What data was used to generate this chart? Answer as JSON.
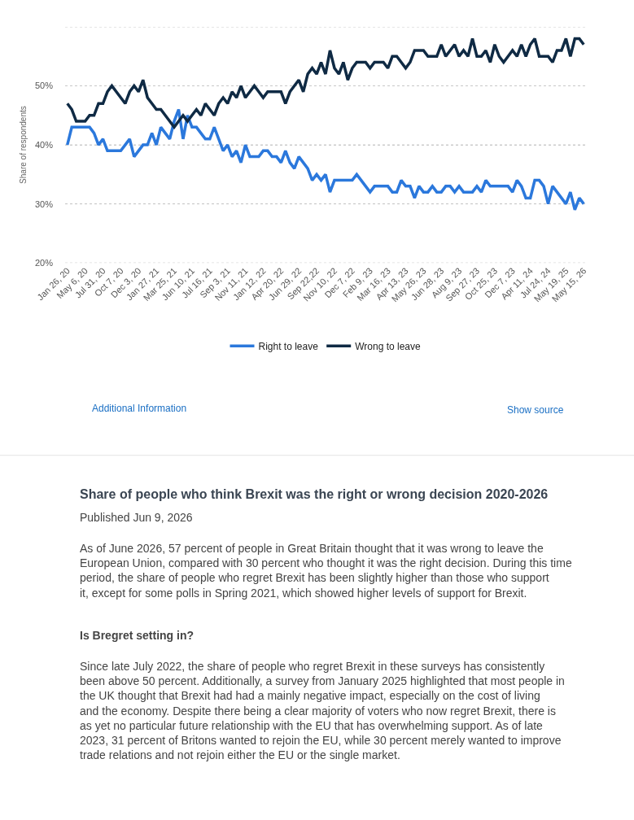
{
  "chart_data": {
    "type": "line",
    "title": "Share of people who think Brexit was the right or wrong decision 2020-2026",
    "ylabel": "Share of respondents",
    "categories": [
      "Jan 26, 20",
      null,
      null,
      null,
      "May 6, 20",
      null,
      null,
      null,
      "Jul 31, 20",
      null,
      null,
      null,
      "Oct 7, 20",
      null,
      null,
      null,
      "Dec 3, 20",
      null,
      null,
      null,
      "Jan 27, 21",
      null,
      null,
      null,
      "Mar 25, 21",
      null,
      null,
      null,
      "Jun 10, 21",
      null,
      null,
      null,
      "Jul 16, 21",
      null,
      null,
      null,
      "Sep 3, 21",
      null,
      null,
      null,
      "Nov 11, 21",
      null,
      null,
      null,
      "Jan 12, 22",
      null,
      null,
      null,
      "Apr 20, 22",
      null,
      null,
      null,
      "Jun 29, 22",
      null,
      null,
      null,
      "Sep 22,22",
      null,
      null,
      null,
      "Nov 10, 22",
      null,
      null,
      null,
      "Dec 7, 22",
      null,
      null,
      null,
      "Feb 9, 23",
      null,
      null,
      null,
      "Mar 16, 23",
      null,
      null,
      null,
      "Apr 13, 23",
      null,
      null,
      null,
      "May 26, 23",
      null,
      null,
      null,
      "Jun 28, 23",
      null,
      null,
      null,
      "Aug 9, 23",
      null,
      null,
      null,
      "Sep 27, 23",
      null,
      null,
      null,
      "Oct 25, 23",
      null,
      null,
      null,
      "Dec 7, 23",
      null,
      null,
      null,
      "Apr 11, 24",
      null,
      null,
      null,
      "Jul 24, 24",
      null,
      null,
      null,
      "May 19, 25",
      null,
      null,
      null,
      "May 15, 26"
    ],
    "series": [
      {
        "name": "Right to leave",
        "color": "#2b78dc",
        "values": [
          40,
          43,
          43,
          43,
          43,
          43,
          42,
          40,
          41,
          39,
          39,
          39,
          39,
          40,
          41,
          38,
          39,
          40,
          40,
          42,
          40,
          43,
          42,
          41,
          44,
          46,
          41,
          45,
          43,
          43,
          42,
          41,
          41,
          43,
          41,
          39,
          40,
          38,
          39,
          37,
          40,
          38,
          38,
          38,
          39,
          39,
          38,
          38,
          37,
          39,
          37,
          36,
          38,
          37,
          36,
          34,
          35,
          34,
          35,
          32,
          34,
          34,
          34,
          34,
          34,
          35,
          34,
          33,
          32,
          33,
          33,
          33,
          33,
          32,
          32,
          34,
          33,
          33,
          31,
          33,
          32,
          32,
          33,
          32,
          32,
          33,
          33,
          32,
          33,
          32,
          32,
          32,
          33,
          32,
          34,
          33,
          33,
          33,
          33,
          33,
          32,
          34,
          33,
          31,
          31,
          34,
          34,
          33,
          30,
          33,
          32,
          31,
          30,
          32,
          29,
          31,
          30
        ]
      },
      {
        "name": "Wrong to leave",
        "color": "#0f2a44",
        "values": [
          47,
          46,
          44,
          44,
          44,
          45,
          45,
          47,
          47,
          49,
          50,
          49,
          48,
          47,
          49,
          50,
          49,
          51,
          48,
          47,
          46,
          46,
          45,
          44,
          43,
          44,
          45,
          44,
          45,
          46,
          45,
          47,
          46,
          45,
          47,
          48,
          47,
          49,
          48,
          50,
          48,
          49,
          50,
          49,
          48,
          49,
          49,
          49,
          49,
          47,
          49,
          50,
          51,
          49,
          52,
          53,
          52,
          54,
          52,
          56,
          53,
          52,
          54,
          51,
          53,
          54,
          54,
          54,
          53,
          54,
          54,
          54,
          53,
          55,
          55,
          54,
          53,
          54,
          56,
          56,
          56,
          55,
          55,
          55,
          57,
          55,
          56,
          57,
          55,
          56,
          55,
          58,
          55,
          55,
          56,
          54,
          57,
          55,
          54,
          55,
          56,
          55,
          57,
          55,
          57,
          58,
          55,
          55,
          55,
          54,
          56,
          56,
          58,
          55,
          58,
          58,
          57
        ]
      }
    ],
    "ylim": [
      20,
      60
    ],
    "yticks": [
      {
        "value": 20,
        "label": "20%"
      },
      {
        "value": 30,
        "label": "30%"
      },
      {
        "value": 40,
        "label": "40%"
      },
      {
        "value": 50,
        "label": "50%"
      },
      {
        "value": 60,
        "label": null
      }
    ],
    "grid": "y",
    "legend": "bottom",
    "marker": "none",
    "line_style": "solid",
    "annotations": [
      "Additional Information",
      "Show source",
      "Published Jun 9, 2026",
      "As of June 2026, 57 percent of people in Great Britain thought that it was wrong to leave the European Union, compared with 30 percent who thought it was the right decision. During this time period, the share of people who regret Brexit has been slightly higher than those who support it, except for some polls in Spring 2021, which showed higher levels of support for Brexit.",
      "Is Bregret setting in?",
      "Since late July 2022, the share of people who regret Brexit in these surveys has consistently been above 50 percent. Additionally, a survey from January 2025 highlighted that most people in the UK thought that Brexit had had a mainly negative impact, especially on the cost of living and the economy. Despite there being a clear majority of voters who now regret Brexit, there is as yet no particular future relationship with the EU that has overwhelming support. As of late 2023, 31 percent of Britons wanted to rejoin the EU, while 30 percent merely wanted to improve trade relations and not rejoin either the EU or the single market."
    ]
  }
}
